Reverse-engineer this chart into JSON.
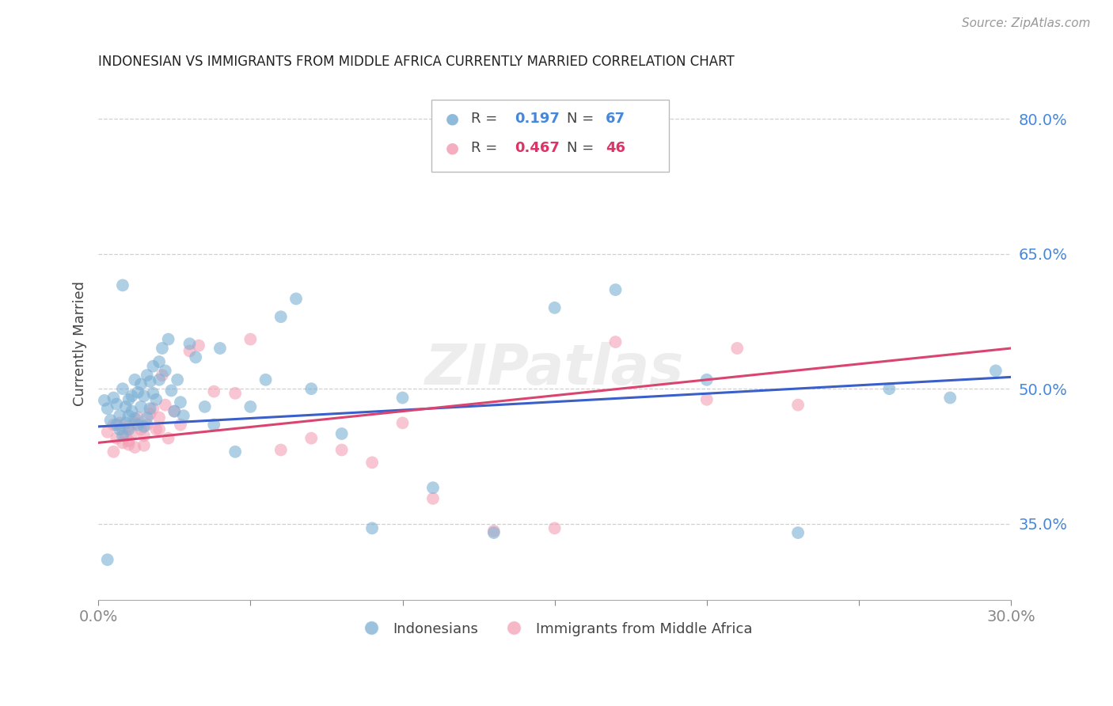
{
  "title": "INDONESIAN VS IMMIGRANTS FROM MIDDLE AFRICA CURRENTLY MARRIED CORRELATION CHART",
  "source": "Source: ZipAtlas.com",
  "ylabel_label": "Currently Married",
  "x_min": 0.0,
  "x_max": 0.3,
  "y_min": 0.265,
  "y_max": 0.835,
  "x_ticks": [
    0.0,
    0.05,
    0.1,
    0.15,
    0.2,
    0.25,
    0.3
  ],
  "x_tick_labels": [
    "0.0%",
    "",
    "",
    "",
    "",
    "",
    "30.0%"
  ],
  "y_ticks": [
    0.35,
    0.5,
    0.65,
    0.8
  ],
  "y_tick_labels": [
    "35.0%",
    "50.0%",
    "65.0%",
    "80.0%"
  ],
  "grid_color": "#d0d0d0",
  "background_color": "#ffffff",
  "blue_color": "#7bafd4",
  "pink_color": "#f4a0b5",
  "line_blue": "#3a5fc8",
  "line_pink": "#d94470",
  "R_blue": 0.197,
  "N_blue": 67,
  "R_pink": 0.467,
  "N_pink": 46,
  "blue_scatter_x": [
    0.002,
    0.003,
    0.004,
    0.005,
    0.006,
    0.006,
    0.007,
    0.007,
    0.008,
    0.008,
    0.009,
    0.009,
    0.01,
    0.01,
    0.01,
    0.011,
    0.011,
    0.012,
    0.012,
    0.013,
    0.013,
    0.014,
    0.014,
    0.015,
    0.015,
    0.016,
    0.016,
    0.017,
    0.017,
    0.018,
    0.018,
    0.019,
    0.02,
    0.02,
    0.021,
    0.022,
    0.023,
    0.024,
    0.025,
    0.026,
    0.027,
    0.028,
    0.03,
    0.032,
    0.035,
    0.038,
    0.04,
    0.045,
    0.05,
    0.055,
    0.06,
    0.065,
    0.07,
    0.08,
    0.09,
    0.1,
    0.11,
    0.13,
    0.15,
    0.17,
    0.2,
    0.23,
    0.26,
    0.28,
    0.295,
    0.003,
    0.008
  ],
  "blue_scatter_y": [
    0.487,
    0.478,
    0.465,
    0.49,
    0.46,
    0.483,
    0.455,
    0.47,
    0.448,
    0.5,
    0.462,
    0.48,
    0.488,
    0.47,
    0.455,
    0.492,
    0.475,
    0.467,
    0.51,
    0.46,
    0.496,
    0.48,
    0.505,
    0.458,
    0.492,
    0.515,
    0.468,
    0.508,
    0.478,
    0.495,
    0.525,
    0.488,
    0.53,
    0.51,
    0.545,
    0.52,
    0.555,
    0.498,
    0.475,
    0.51,
    0.485,
    0.47,
    0.55,
    0.535,
    0.48,
    0.46,
    0.545,
    0.43,
    0.48,
    0.51,
    0.58,
    0.6,
    0.5,
    0.45,
    0.345,
    0.49,
    0.39,
    0.34,
    0.59,
    0.61,
    0.51,
    0.34,
    0.5,
    0.49,
    0.52,
    0.31,
    0.615
  ],
  "pink_scatter_x": [
    0.003,
    0.005,
    0.006,
    0.007,
    0.008,
    0.009,
    0.01,
    0.01,
    0.011,
    0.012,
    0.013,
    0.014,
    0.015,
    0.016,
    0.017,
    0.018,
    0.019,
    0.02,
    0.021,
    0.022,
    0.023,
    0.025,
    0.027,
    0.03,
    0.033,
    0.038,
    0.045,
    0.05,
    0.06,
    0.07,
    0.08,
    0.09,
    0.1,
    0.11,
    0.13,
    0.15,
    0.17,
    0.2,
    0.21,
    0.23,
    0.005,
    0.008,
    0.01,
    0.012,
    0.015,
    0.02
  ],
  "pink_scatter_y": [
    0.452,
    0.46,
    0.445,
    0.462,
    0.455,
    0.448,
    0.458,
    0.442,
    0.45,
    0.462,
    0.468,
    0.455,
    0.448,
    0.46,
    0.472,
    0.478,
    0.455,
    0.468,
    0.515,
    0.482,
    0.445,
    0.475,
    0.46,
    0.542,
    0.548,
    0.497,
    0.495,
    0.555,
    0.432,
    0.445,
    0.432,
    0.418,
    0.462,
    0.378,
    0.342,
    0.345,
    0.552,
    0.488,
    0.545,
    0.482,
    0.43,
    0.44,
    0.438,
    0.435,
    0.437,
    0.455
  ],
  "blue_line_x0": 0.0,
  "blue_line_x1": 0.3,
  "blue_line_y0": 0.458,
  "blue_line_y1": 0.513,
  "pink_line_x0": 0.0,
  "pink_line_x1": 0.3,
  "pink_line_y0": 0.44,
  "pink_line_y1": 0.545
}
